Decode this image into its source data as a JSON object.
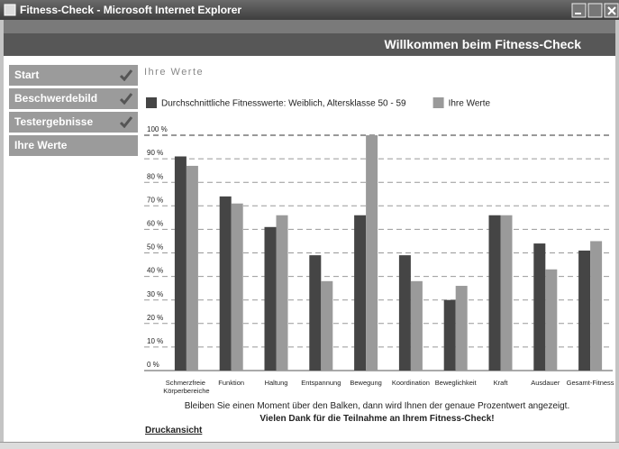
{
  "window": {
    "title": "Fitness-Check - Microsoft Internet Explorer"
  },
  "header": {
    "title": "Willkommen beim Fitness-Check"
  },
  "nav": {
    "items": [
      {
        "label": "Start",
        "done": true
      },
      {
        "label": "Beschwerdebild",
        "done": true
      },
      {
        "label": "Testergebnisse",
        "done": true
      },
      {
        "label": "Ihre Werte",
        "done": false
      }
    ]
  },
  "section_title": "Ihre Werte",
  "chart_data": {
    "type": "bar",
    "categories": [
      "Schmerzfreie Körperbereiche",
      "Funktion",
      "Haltung",
      "Entspannung",
      "Bewegung",
      "Koordination",
      "Beweglichkeit",
      "Kraft",
      "Ausdauer",
      "Gesamt-Fitness"
    ],
    "series": [
      {
        "name": "Durchschnittliche Fitnesswerte: Weiblich, Altersklasse 50 - 59",
        "color": "#454545",
        "values": [
          91,
          74,
          61,
          49,
          66,
          49,
          30,
          66,
          54,
          51
        ]
      },
      {
        "name": "Ihre Werte",
        "color": "#9a9a9a",
        "values": [
          87,
          71,
          66,
          38,
          100,
          38,
          36,
          66,
          43,
          55
        ]
      }
    ],
    "ylim": [
      0,
      100
    ],
    "yticks": [
      {
        "value": 0,
        "label": "0 %"
      },
      {
        "value": 10,
        "label": "10 %"
      },
      {
        "value": 20,
        "label": "20 %"
      },
      {
        "value": 30,
        "label": "30 %"
      },
      {
        "value": 40,
        "label": "40 %"
      },
      {
        "value": 50,
        "label": "50 %"
      },
      {
        "value": 60,
        "label": "60 %"
      },
      {
        "value": 70,
        "label": "70 %"
      },
      {
        "value": 80,
        "label": "80 %"
      },
      {
        "value": 90,
        "label": "90 %"
      },
      {
        "value": 100,
        "label": "100 %"
      }
    ],
    "grid": true,
    "legend": "top"
  },
  "footer": {
    "hint": "Bleiben Sie einen Moment über den Balken, dann wird Ihnen der genaue Prozentwert angezeigt.",
    "thanks": "Vielen Dank für die Teilnahme an Ihrem Fitness-Check!",
    "print_link": "Druckansicht"
  }
}
